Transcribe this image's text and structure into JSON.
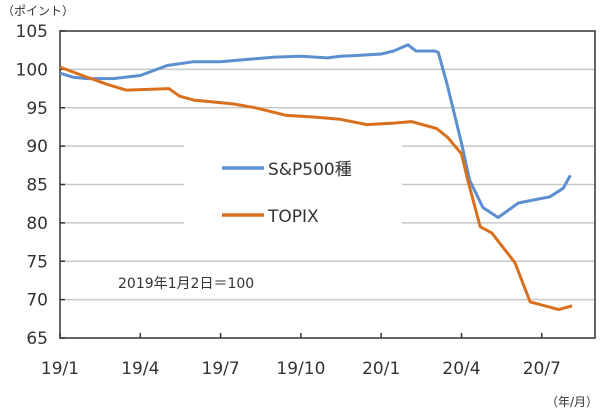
{
  "chart_data": {
    "type": "line",
    "ylabel": "（ポイント）",
    "xlabel": "（年/月）",
    "annotation": "2019年1月2日＝100",
    "ylim": [
      65,
      105
    ],
    "yticks": [
      65,
      70,
      75,
      80,
      85,
      90,
      95,
      100,
      105
    ],
    "xticks": [
      "19/1",
      "19/4",
      "19/7",
      "19/10",
      "20/1",
      "20/4",
      "20/7"
    ],
    "grid": true,
    "legend_position": "center",
    "series": [
      {
        "name": "S&P500種",
        "color": "#5b8fd0",
        "points": [
          [
            "2019-01",
            99.5
          ],
          [
            "2019-01-15",
            99.0
          ],
          [
            "2019-02",
            98.8
          ],
          [
            "2019-03",
            98.8
          ],
          [
            "2019-04",
            99.2
          ],
          [
            "2019-04-15",
            99.8
          ],
          [
            "2019-05",
            100.5
          ],
          [
            "2019-06",
            101.0
          ],
          [
            "2019-07",
            101.0
          ],
          [
            "2019-08",
            101.3
          ],
          [
            "2019-09",
            101.6
          ],
          [
            "2019-10",
            101.7
          ],
          [
            "2019-11",
            101.5
          ],
          [
            "2019-11-15",
            101.7
          ],
          [
            "2019-12",
            101.8
          ],
          [
            "2020-01",
            102.0
          ],
          [
            "2020-01-15",
            102.4
          ],
          [
            "2020-02",
            103.2
          ],
          [
            "2020-02-10",
            102.4
          ],
          [
            "2020-03",
            102.4
          ],
          [
            "2020-03-05",
            102.2
          ],
          [
            "2020-03-15",
            98.0
          ],
          [
            "2020-04",
            90.4
          ],
          [
            "2020-04-10",
            85.6
          ],
          [
            "2020-04-25",
            82.0
          ],
          [
            "2020-05-12",
            80.7
          ],
          [
            "2020-06-05",
            82.6
          ],
          [
            "2020-07-10",
            83.4
          ],
          [
            "2020-07-25",
            84.5
          ],
          [
            "2020-08-03",
            86.2
          ]
        ]
      },
      {
        "name": "TOPIX",
        "color": "#d9701e",
        "points": [
          [
            "2019-01",
            100.3
          ],
          [
            "2019-02",
            99.0
          ],
          [
            "2019-02-25",
            98.0
          ],
          [
            "2019-03-15",
            97.3
          ],
          [
            "2019-05-03",
            97.5
          ],
          [
            "2019-05-15",
            96.5
          ],
          [
            "2019-06",
            96.0
          ],
          [
            "2019-07-15",
            95.5
          ],
          [
            "2019-08-10",
            95.0
          ],
          [
            "2019-09-15",
            94.0
          ],
          [
            "2019-10-15",
            93.8
          ],
          [
            "2019-11-15",
            93.5
          ],
          [
            "2019-12-15",
            92.8
          ],
          [
            "2020-01-15",
            93.0
          ],
          [
            "2020-02-05",
            93.2
          ],
          [
            "2020-03-03",
            92.3
          ],
          [
            "2020-03-15",
            91.2
          ],
          [
            "2020-04",
            89.0
          ],
          [
            "2020-04-08",
            85.6
          ],
          [
            "2020-04-22",
            79.5
          ],
          [
            "2020-05-05",
            78.7
          ],
          [
            "2020-06",
            74.8
          ],
          [
            "2020-06-18",
            69.7
          ],
          [
            "2020-07-20",
            68.7
          ],
          [
            "2020-08-05",
            69.2
          ]
        ]
      }
    ]
  }
}
